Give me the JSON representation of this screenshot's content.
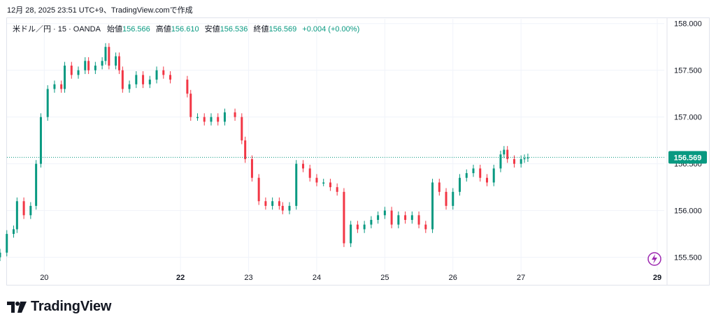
{
  "header": {
    "timestamp": "12月 28, 2025 23:51 UTC+9、TradingView.comで作成"
  },
  "legend": {
    "symbol": "米ドル／円 · 15 · OANDA",
    "open_label": "始値",
    "open": "156.566",
    "high_label": "高値",
    "high": "156.610",
    "low_label": "安値",
    "low": "156.536",
    "close_label": "終値",
    "close": "156.569",
    "change": "+0.004 (+0.00%)"
  },
  "price_tag": "156.569",
  "logo": {
    "text": "TradingView"
  },
  "colors": {
    "up": "#089981",
    "down": "#f23645",
    "grid": "#f0f3fa",
    "accent_purple": "#9c27b0"
  },
  "chart_data": {
    "type": "candlestick",
    "ylim": [
      155.4,
      158.05
    ],
    "y_ticks": [
      "158.000",
      "157.500",
      "157.000",
      "156.500",
      "156.000",
      "155.500"
    ],
    "y_tick_values": [
      158.0,
      157.5,
      157.0,
      156.5,
      156.0,
      155.5
    ],
    "x_ticks": [
      {
        "label": "20",
        "x": 20.0,
        "bold": false
      },
      {
        "label": "22",
        "x": 22.0,
        "bold": true
      },
      {
        "label": "23",
        "x": 23.0,
        "bold": false
      },
      {
        "label": "24",
        "x": 24.0,
        "bold": false
      },
      {
        "label": "25",
        "x": 25.0,
        "bold": false
      },
      {
        "label": "26",
        "x": 26.0,
        "bold": false
      },
      {
        "label": "27",
        "x": 27.0,
        "bold": false
      },
      {
        "label": "29",
        "x": 29.0,
        "bold": true
      }
    ],
    "xlim": [
      19.35,
      29.0
    ],
    "last_price": 156.569,
    "series": [
      {
        "x": 19.35,
        "close": 155.55
      },
      {
        "x": 19.45,
        "close": 155.75
      },
      {
        "x": 19.55,
        "close": 155.8
      },
      {
        "x": 19.6,
        "close": 156.1
      },
      {
        "x": 19.7,
        "close": 155.95
      },
      {
        "x": 19.8,
        "close": 156.05
      },
      {
        "x": 19.88,
        "close": 156.5
      },
      {
        "x": 19.95,
        "close": 157.0
      },
      {
        "x": 20.05,
        "close": 157.3
      },
      {
        "x": 20.15,
        "close": 157.35
      },
      {
        "x": 20.25,
        "close": 157.3
      },
      {
        "x": 20.3,
        "close": 157.55
      },
      {
        "x": 20.4,
        "close": 157.45
      },
      {
        "x": 20.5,
        "close": 157.5
      },
      {
        "x": 20.6,
        "close": 157.6
      },
      {
        "x": 20.65,
        "close": 157.5
      },
      {
        "x": 20.75,
        "close": 157.55
      },
      {
        "x": 20.85,
        "close": 157.6
      },
      {
        "x": 20.9,
        "close": 157.75
      },
      {
        "x": 20.95,
        "close": 157.55
      },
      {
        "x": 21.05,
        "close": 157.65
      },
      {
        "x": 21.1,
        "close": 157.5
      },
      {
        "x": 21.15,
        "close": 157.3
      },
      {
        "x": 21.25,
        "close": 157.35
      },
      {
        "x": 21.35,
        "close": 157.45
      },
      {
        "x": 21.45,
        "close": 157.35
      },
      {
        "x": 21.55,
        "close": 157.4
      },
      {
        "x": 21.65,
        "close": 157.5
      },
      {
        "x": 21.75,
        "close": 157.45
      },
      {
        "x": 21.85,
        "close": 157.4
      },
      {
        "x": 22.1,
        "close": 157.25
      },
      {
        "x": 22.15,
        "close": 157.0
      },
      {
        "x": 22.25,
        "close": 157.0
      },
      {
        "x": 22.35,
        "close": 156.95
      },
      {
        "x": 22.45,
        "close": 157.0
      },
      {
        "x": 22.55,
        "close": 156.95
      },
      {
        "x": 22.65,
        "close": 157.05
      },
      {
        "x": 22.8,
        "close": 157.0
      },
      {
        "x": 22.9,
        "close": 156.75
      },
      {
        "x": 22.95,
        "close": 156.55
      },
      {
        "x": 23.05,
        "close": 156.35
      },
      {
        "x": 23.15,
        "close": 156.1
      },
      {
        "x": 23.25,
        "close": 156.05
      },
      {
        "x": 23.35,
        "close": 156.1
      },
      {
        "x": 23.45,
        "close": 156.05
      },
      {
        "x": 23.5,
        "close": 156.0
      },
      {
        "x": 23.6,
        "close": 156.05
      },
      {
        "x": 23.7,
        "close": 156.5
      },
      {
        "x": 23.8,
        "close": 156.45
      },
      {
        "x": 23.9,
        "close": 156.35
      },
      {
        "x": 24.0,
        "close": 156.3
      },
      {
        "x": 24.1,
        "close": 156.3
      },
      {
        "x": 24.2,
        "close": 156.25
      },
      {
        "x": 24.3,
        "close": 156.2
      },
      {
        "x": 24.4,
        "close": 155.65
      },
      {
        "x": 24.5,
        "close": 155.85
      },
      {
        "x": 24.6,
        "close": 155.8
      },
      {
        "x": 24.7,
        "close": 155.85
      },
      {
        "x": 24.8,
        "close": 155.9
      },
      {
        "x": 24.9,
        "close": 155.95
      },
      {
        "x": 25.0,
        "close": 156.0
      },
      {
        "x": 25.1,
        "close": 155.85
      },
      {
        "x": 25.2,
        "close": 155.95
      },
      {
        "x": 25.3,
        "close": 155.9
      },
      {
        "x": 25.4,
        "close": 155.95
      },
      {
        "x": 25.5,
        "close": 155.85
      },
      {
        "x": 25.6,
        "close": 155.8
      },
      {
        "x": 25.7,
        "close": 156.3
      },
      {
        "x": 25.8,
        "close": 156.2
      },
      {
        "x": 25.9,
        "close": 156.05
      },
      {
        "x": 26.0,
        "close": 156.2
      },
      {
        "x": 26.1,
        "close": 156.35
      },
      {
        "x": 26.2,
        "close": 156.4
      },
      {
        "x": 26.3,
        "close": 156.45
      },
      {
        "x": 26.4,
        "close": 156.35
      },
      {
        "x": 26.5,
        "close": 156.3
      },
      {
        "x": 26.6,
        "close": 156.45
      },
      {
        "x": 26.7,
        "close": 156.6
      },
      {
        "x": 26.75,
        "close": 156.65
      },
      {
        "x": 26.8,
        "close": 156.55
      },
      {
        "x": 26.9,
        "close": 156.5
      },
      {
        "x": 27.0,
        "close": 156.55
      },
      {
        "x": 27.05,
        "close": 156.56
      },
      {
        "x": 27.1,
        "close": 156.569
      }
    ]
  }
}
